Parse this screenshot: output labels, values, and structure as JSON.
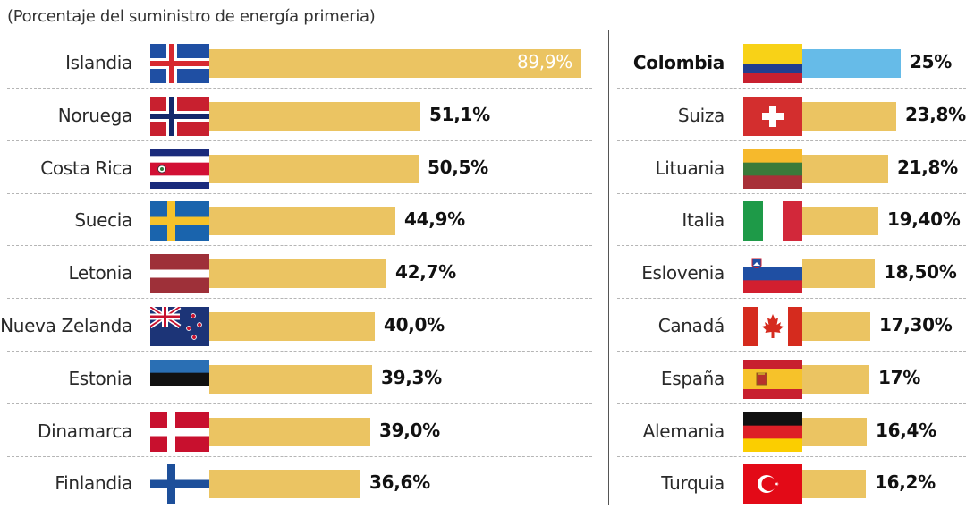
{
  "chart_data": {
    "type": "bar",
    "subtitle": "(Porcentaje del suministro de energía primeria)",
    "highlight_color": "#66bbe8",
    "bar_color": "#ebc462",
    "panels": [
      {
        "categories": [
          "Islandia",
          "Noruega",
          "Costa Rica",
          "Suecia",
          "Letonia",
          "Nueva Zelanda",
          "Estonia",
          "Dinamarca",
          "Finlandia"
        ],
        "values": [
          89.9,
          51.1,
          50.5,
          44.9,
          42.7,
          40.0,
          39.3,
          39.0,
          36.6
        ],
        "labels": [
          "89,9%",
          "51,1%",
          "50,5%",
          "44,9%",
          "42,7%",
          "40,0%",
          "39,3%",
          "39,0%",
          "36,6%"
        ],
        "flags": [
          "iceland-flag",
          "norway-flag",
          "costa-rica-flag",
          "sweden-flag",
          "latvia-flag",
          "new-zealand-flag",
          "estonia-flag",
          "denmark-flag",
          "finland-flag"
        ]
      },
      {
        "categories": [
          "Colombia",
          "Suiza",
          "Lituania",
          "Italia",
          "Eslovenia",
          "Canadá",
          "España",
          "Alemania",
          "Turquia"
        ],
        "values": [
          25,
          23.8,
          21.8,
          19.4,
          18.5,
          17.3,
          17,
          16.4,
          16.2
        ],
        "labels": [
          "25%",
          "23,8%",
          "21,8%",
          "19,40%",
          "18,50%",
          "17,30%",
          "17%",
          "16,4%",
          "16,2%"
        ],
        "flags": [
          "colombia-flag",
          "switzerland-flag",
          "lithuania-flag",
          "italy-flag",
          "slovenia-flag",
          "canada-flag",
          "spain-flag",
          "germany-flag",
          "turkey-flag"
        ],
        "highlight": "Colombia"
      }
    ]
  }
}
